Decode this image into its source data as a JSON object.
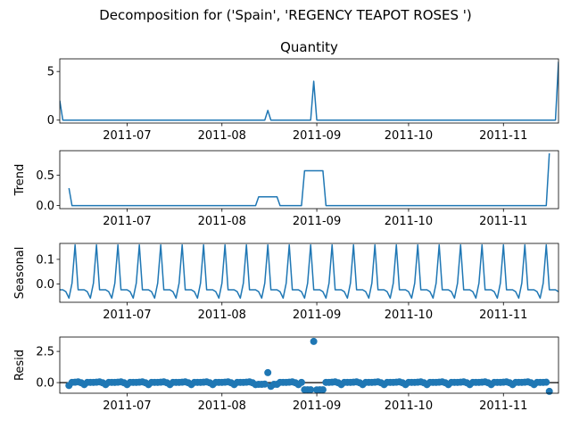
{
  "figure": {
    "suptitle": "Decomposition for ('Spain', 'REGENCY TEAPOT ROSES ')"
  },
  "chart_data": [
    {
      "type": "line",
      "title": "Quantity",
      "ylabel": "",
      "xlim": [
        "2011-06-09",
        "2011-11-19"
      ],
      "ylim": [
        -0.3,
        6.3
      ],
      "yticks": [
        0,
        5
      ],
      "ytick_labels": [
        "0",
        "5"
      ],
      "xticks": [
        "2011-07-01",
        "2011-08-01",
        "2011-09-01",
        "2011-10-01",
        "2011-11-01"
      ],
      "xtick_labels": [
        "2011-07",
        "2011-08",
        "2011-09",
        "2011-10",
        "2011-11"
      ],
      "line_color": "#1f77b4",
      "points": [
        [
          "2011-06-09",
          2
        ],
        [
          "2011-06-10",
          0
        ],
        [
          "2011-08-15",
          0
        ],
        [
          "2011-08-16",
          1
        ],
        [
          "2011-08-17",
          0
        ],
        [
          "2011-08-30",
          0
        ],
        [
          "2011-08-31",
          4
        ],
        [
          "2011-09-01",
          0
        ],
        [
          "2011-11-18",
          0
        ],
        [
          "2011-11-19",
          6
        ]
      ]
    },
    {
      "type": "line",
      "title": "",
      "ylabel": "Trend",
      "xlim": [
        "2011-06-09",
        "2011-11-19"
      ],
      "ylim": [
        -0.05,
        0.9
      ],
      "yticks": [
        0.0,
        0.5
      ],
      "ytick_labels": [
        "0.0",
        "0.5"
      ],
      "xticks": [
        "2011-07-01",
        "2011-08-01",
        "2011-09-01",
        "2011-10-01",
        "2011-11-01"
      ],
      "xtick_labels": [
        "2011-07",
        "2011-08",
        "2011-09",
        "2011-10",
        "2011-11"
      ],
      "line_color": "#1f77b4",
      "points": [
        [
          "2011-06-12",
          0.286
        ],
        [
          "2011-06-13",
          0
        ],
        [
          "2011-08-12",
          0
        ],
        [
          "2011-08-13",
          0.143
        ],
        [
          "2011-08-19",
          0.143
        ],
        [
          "2011-08-20",
          0
        ],
        [
          "2011-08-27",
          0
        ],
        [
          "2011-08-28",
          0.571
        ],
        [
          "2011-09-03",
          0.571
        ],
        [
          "2011-09-04",
          0
        ],
        [
          "2011-11-15",
          0
        ],
        [
          "2011-11-16",
          0.857
        ]
      ]
    },
    {
      "type": "line",
      "title": "",
      "ylabel": "Seasonal",
      "xlim": [
        "2011-06-09",
        "2011-11-19"
      ],
      "ylim": [
        -0.075,
        0.165
      ],
      "yticks": [
        0.0,
        0.1
      ],
      "ytick_labels": [
        "0.0",
        "0.1"
      ],
      "xticks": [
        "2011-07-01",
        "2011-08-01",
        "2011-09-01",
        "2011-10-01",
        "2011-11-01"
      ],
      "xtick_labels": [
        "2011-07",
        "2011-08",
        "2011-09",
        "2011-10",
        "2011-11"
      ],
      "line_color": "#1f77b4",
      "period": 7,
      "pattern": [
        -0.024,
        -0.024,
        -0.032,
        -0.058,
        0.003,
        0.159,
        -0.024
      ],
      "start": "2011-06-09",
      "end": "2011-11-19"
    },
    {
      "type": "scatter",
      "title": "",
      "ylabel": "Resid",
      "xlim": [
        "2011-06-09",
        "2011-11-19"
      ],
      "ylim": [
        -0.85,
        3.65
      ],
      "yticks": [
        0.0,
        2.5
      ],
      "ytick_labels": [
        "0.0",
        "2.5"
      ],
      "xticks": [
        "2011-07-01",
        "2011-08-01",
        "2011-09-01",
        "2011-10-01",
        "2011-11-01"
      ],
      "xtick_labels": [
        "2011-07",
        "2011-08",
        "2011-09",
        "2011-10",
        "2011-11"
      ],
      "marker_color": "#1f77b4",
      "zero_line": true,
      "start": "2011-06-12",
      "end": "2011-11-16",
      "baseline_pattern": [
        0.02,
        0.02,
        0.03,
        0.06,
        -0.01,
        -0.16,
        0.02
      ],
      "overrides": [
        [
          "2011-06-12",
          -0.23
        ],
        [
          "2011-08-13",
          -0.14
        ],
        [
          "2011-08-14",
          -0.14
        ],
        [
          "2011-08-15",
          -0.12
        ],
        [
          "2011-08-16",
          0.8
        ],
        [
          "2011-08-17",
          -0.3
        ],
        [
          "2011-08-18",
          -0.14
        ],
        [
          "2011-08-19",
          -0.14
        ],
        [
          "2011-08-28",
          -0.57
        ],
        [
          "2011-08-29",
          -0.57
        ],
        [
          "2011-08-30",
          -0.57
        ],
        [
          "2011-08-31",
          3.3
        ],
        [
          "2011-09-01",
          -0.58
        ],
        [
          "2011-09-02",
          -0.57
        ],
        [
          "2011-09-03",
          -0.57
        ],
        [
          "2011-11-16",
          -0.7
        ]
      ]
    }
  ]
}
